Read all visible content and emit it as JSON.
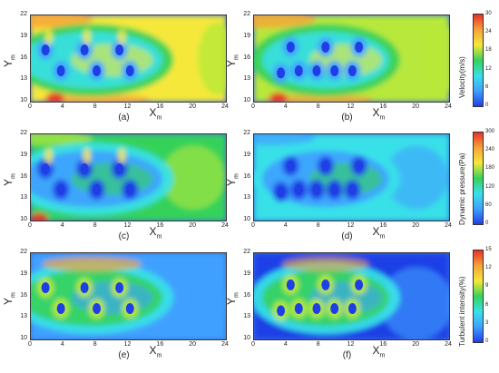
{
  "panels": [
    {
      "id": "a",
      "label": "(a)",
      "style": "vel-left"
    },
    {
      "id": "b",
      "label": "(b)",
      "style": "vel-right"
    },
    {
      "id": "c",
      "label": "(c)",
      "style": "dp-left"
    },
    {
      "id": "d",
      "label": "(d)",
      "style": "dp-right"
    },
    {
      "id": "e",
      "label": "(e)",
      "style": "ti-left"
    },
    {
      "id": "f",
      "label": "(f)",
      "style": "ti-right"
    }
  ],
  "axes": {
    "x_label": "X",
    "y_label": "Y",
    "subscript": "m",
    "x_ticks": [
      "0",
      "4",
      "8",
      "12",
      "16",
      "20",
      "24"
    ],
    "y_ticks": [
      "22",
      "19",
      "16",
      "13",
      "10"
    ]
  },
  "colorbars": [
    {
      "title": "Velocity(m/s)",
      "ticks": [
        "30",
        "24",
        "18",
        "12",
        "6",
        "0"
      ]
    },
    {
      "title": "Dynamic pressure(Pa)",
      "ticks": [
        "300",
        "240",
        "180",
        "120",
        "60",
        "0"
      ]
    },
    {
      "title": "Turbulent intensity(%)",
      "ticks": [
        "15",
        "12",
        "9",
        "6",
        "3",
        "0"
      ]
    }
  ],
  "colors": {
    "blue": "#1f3fe6",
    "lightblue": "#3fa0ff",
    "cyan": "#38e0e8",
    "green": "#36d25a",
    "yellowgreen": "#b8e83a",
    "yellow": "#f5e83a",
    "orange": "#f7a23a",
    "red": "#e8302a"
  }
}
